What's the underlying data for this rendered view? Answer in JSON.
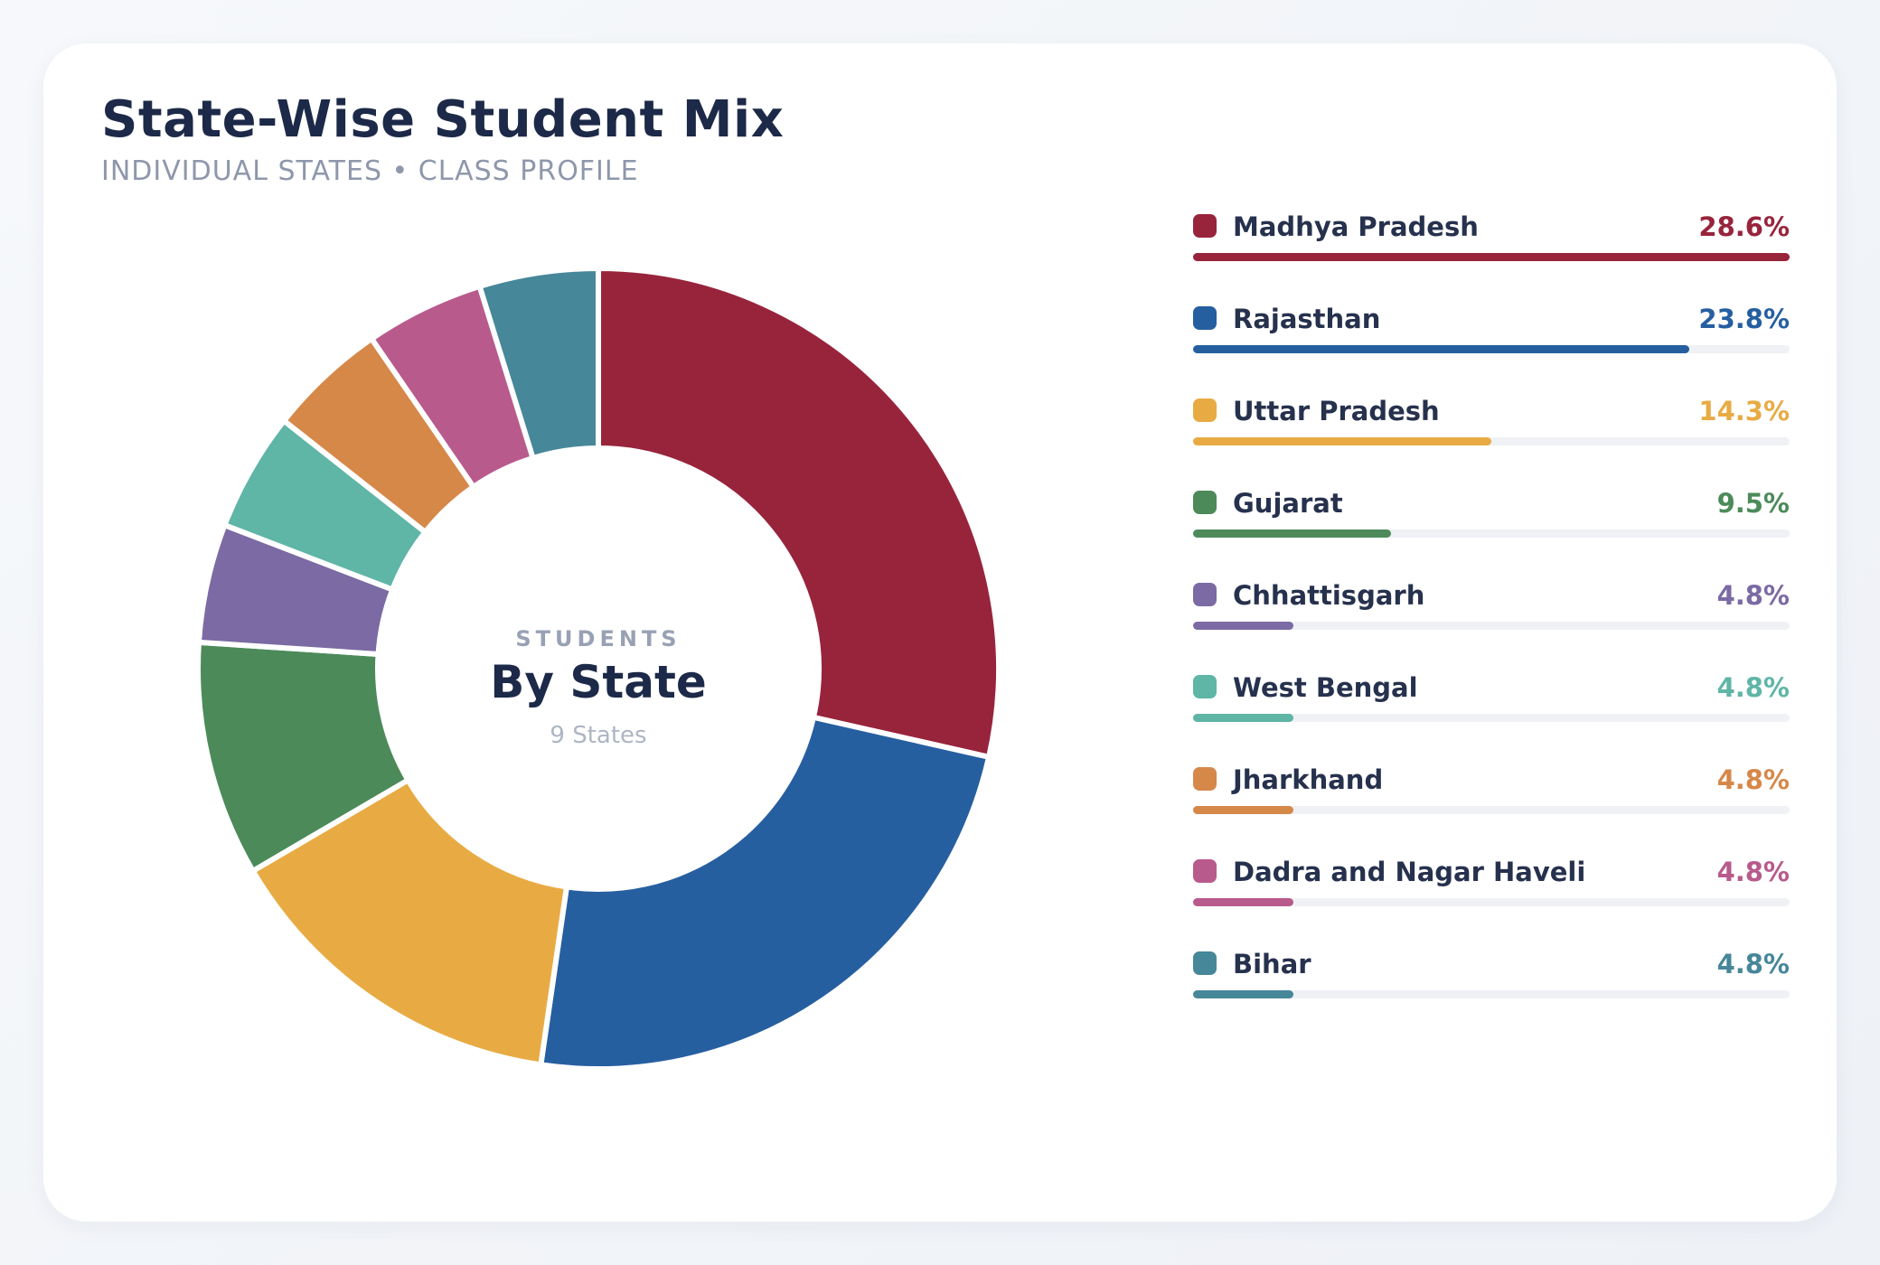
{
  "header": {
    "title": "State-Wise Student Mix",
    "subtitle": "INDIVIDUAL STATES • CLASS PROFILE"
  },
  "center": {
    "kicker": "STUDENTS",
    "title": "By State",
    "sub": "9 States"
  },
  "chart_data": {
    "type": "pie",
    "variant": "donut",
    "title": "State-Wise Student Mix",
    "subtitle": "INDIVIDUAL STATES • CLASS PROFILE",
    "legend_position": "right",
    "slices": [
      {
        "label": "Madhya Pradesh",
        "value": 28.6,
        "value_label": "28.6%",
        "color": "#98243c"
      },
      {
        "label": "Rajasthan",
        "value": 23.8,
        "value_label": "23.8%",
        "color": "#265fa0"
      },
      {
        "label": "Uttar Pradesh",
        "value": 14.3,
        "value_label": "14.3%",
        "color": "#e8ab44"
      },
      {
        "label": "Gujarat",
        "value": 9.5,
        "value_label": "9.5%",
        "color": "#4c8a5a"
      },
      {
        "label": "Chhattisgarh",
        "value": 4.8,
        "value_label": "4.8%",
        "color": "#7b6aa4"
      },
      {
        "label": "West Bengal",
        "value": 4.8,
        "value_label": "4.8%",
        "color": "#5fb5a6"
      },
      {
        "label": "Jharkhand",
        "value": 4.8,
        "value_label": "4.8%",
        "color": "#d68849"
      },
      {
        "label": "Dadra and Nagar Haveli",
        "value": 4.8,
        "value_label": "4.8%",
        "color": "#b85a8c"
      },
      {
        "label": "Bihar",
        "value": 4.8,
        "value_label": "4.8%",
        "color": "#468799"
      }
    ]
  }
}
